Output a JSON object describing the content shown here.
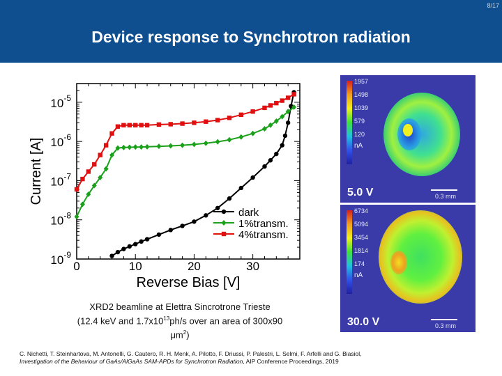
{
  "page_number": "8/17",
  "title": "Device response to Synchrotron radiation",
  "caption": {
    "line1": "XRD2 beamline at Elettra Sincrotrone Trieste",
    "line2_pre": "(12.4 keV and 1.7x10",
    "line2_sup": "13",
    "line2_post": "ph/s over an area of 300x90",
    "line3_pre": "μm",
    "line3_sup": "2",
    "line3_post": ")"
  },
  "citation": {
    "authors": "C. Nichetti, T. Steinhartova, M. Antonelli, G. Cautero, R. H. Menk, A. Pilotto, F. Driussi, P. Palestri, L. Selmi, F. Arfelli and G. Biasiol,",
    "title": "Investigation of the Behaviour of GaAs/AlGaAs SAM-APDs for Synchrotron Radiation",
    "venue": ", AIP Conference Proceedings, 2019"
  },
  "maps": [
    {
      "ticks": [
        "1957",
        "1498",
        "1039",
        "579",
        "120"
      ],
      "unit": "nA",
      "voltage": "5.0 V",
      "scale": "0.3 mm"
    },
    {
      "ticks": [
        "6734",
        "5094",
        "3454",
        "1814",
        "174"
      ],
      "unit": "nA",
      "voltage": "30.0 V",
      "scale": "0.3 mm"
    }
  ],
  "colors": {
    "header": "#0f4f8f",
    "dark": "#000000",
    "transm1": "#1aa01a",
    "transm4": "#e01010"
  },
  "chart_data": {
    "type": "line",
    "xlabel": "Reverse Bias [V]",
    "ylabel": "Current [A]",
    "xlim": [
      0,
      38
    ],
    "ylim": [
      1e-09,
      3e-05
    ],
    "yscale": "log",
    "x_ticks": [
      "0",
      "10",
      "20",
      "30"
    ],
    "y_tick_bases": [
      "10",
      "10",
      "10",
      "10",
      "10"
    ],
    "y_tick_exps": [
      "-9",
      "-8",
      "-7",
      "-6",
      "-5"
    ],
    "legend_position": "lower-right",
    "series": [
      {
        "name": "dark",
        "color": "#000000",
        "marker": "circle",
        "x": [
          5,
          6,
          7,
          8,
          9,
          10,
          11,
          12,
          14,
          16,
          18,
          20,
          22,
          24,
          26,
          28,
          30,
          32,
          33,
          34,
          35,
          35.5,
          36,
          36.5,
          37
        ],
        "y": [
          9e-10,
          1.2e-09,
          1.5e-09,
          1.8e-09,
          2.1e-09,
          2.4e-09,
          2.8e-09,
          3.2e-09,
          4.2e-09,
          5.5e-09,
          7e-09,
          9e-09,
          1.3e-08,
          2e-08,
          3.5e-08,
          6.5e-08,
          1.2e-07,
          2.3e-07,
          3.3e-07,
          4.8e-07,
          8e-07,
          1.4e-06,
          3e-06,
          8e-06,
          1.8e-05
        ]
      },
      {
        "name": "1%transm.",
        "color": "#1aa01a",
        "marker": "diamond",
        "x": [
          0,
          1,
          2,
          3,
          4,
          5,
          6,
          7,
          8,
          9,
          10,
          11,
          12,
          14,
          16,
          18,
          20,
          22,
          24,
          26,
          28,
          30,
          32,
          33,
          34,
          35,
          36,
          37
        ],
        "y": [
          1.2e-08,
          2.5e-08,
          4.5e-08,
          7.5e-08,
          1.2e-07,
          2e-07,
          4.5e-07,
          6.8e-07,
          7e-07,
          7.1e-07,
          7.2e-07,
          7.2e-07,
          7.3e-07,
          7.5e-07,
          7.7e-07,
          8e-07,
          8.4e-07,
          9e-07,
          9.8e-07,
          1.1e-06,
          1.3e-06,
          1.6e-06,
          2.1e-06,
          2.6e-06,
          3.3e-06,
          4.3e-06,
          5.8e-06,
          7.5e-06
        ]
      },
      {
        "name": "4%transm.",
        "color": "#e01010",
        "marker": "square",
        "x": [
          0,
          1,
          2,
          3,
          4,
          5,
          6,
          7,
          8,
          9,
          10,
          11,
          12,
          14,
          16,
          18,
          20,
          22,
          24,
          26,
          28,
          30,
          32,
          33,
          34,
          35,
          36,
          37
        ],
        "y": [
          6e-08,
          1.1e-07,
          1.7e-07,
          2.6e-07,
          4.5e-07,
          8e-07,
          1.6e-06,
          2.4e-06,
          2.6e-06,
          2.6e-06,
          2.6e-06,
          2.6e-06,
          2.6e-06,
          2.7e-06,
          2.75e-06,
          2.85e-06,
          3e-06,
          3.2e-06,
          3.5e-06,
          4e-06,
          4.8e-06,
          5.8e-06,
          7.2e-06,
          8.3e-06,
          9.5e-06,
          1.1e-05,
          1.3e-05,
          1.6e-05
        ]
      }
    ]
  }
}
